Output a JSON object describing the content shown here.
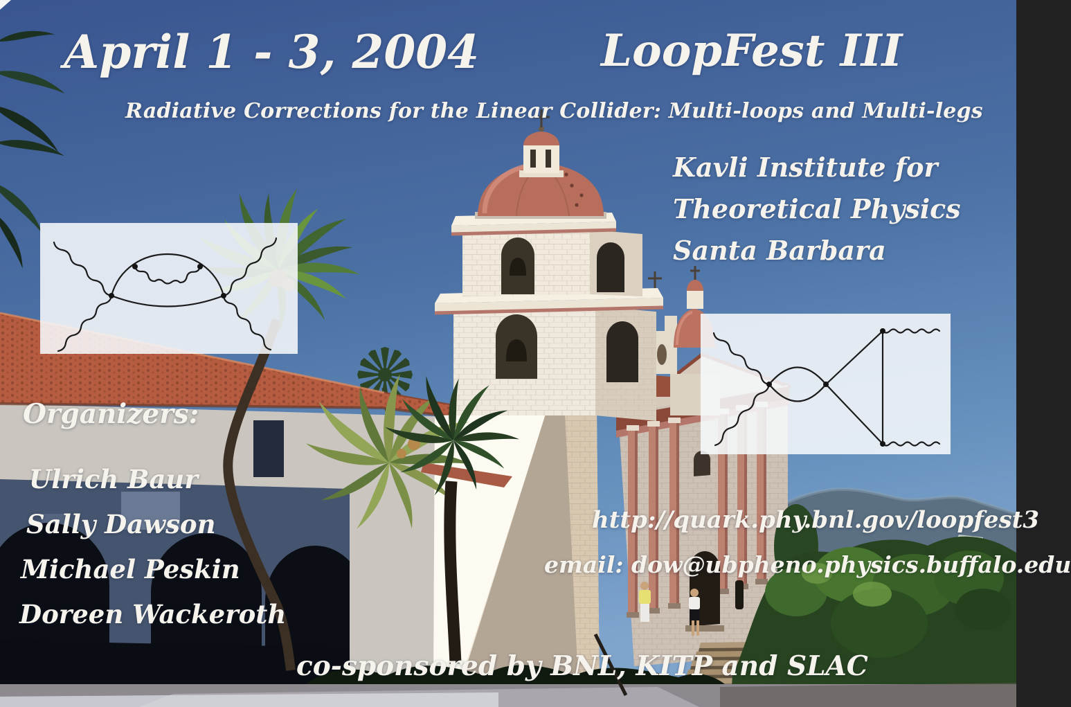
{
  "poster": {
    "dates": "April 1 - 3, 2004",
    "title": "LoopFest III",
    "subtitle": "Radiative Corrections for the Linear Collider: Multi-loops and Multi-legs",
    "venue_lines": [
      "Kavli Institute for",
      "Theoretical Physics",
      "Santa Barbara"
    ],
    "organizers_heading": "Organizers:",
    "organizers": [
      "Ulrich Baur",
      "Sally Dawson",
      "Michael Peskin",
      "Doreen Wackeroth"
    ],
    "website": "http://quark.phy.bnl.gov/loopfest3",
    "email": "email: dow@ubpheno.physics.buffalo.edu",
    "sponsors": "co-sponsored by BNL, KITP and SLAC"
  },
  "diagrams": {
    "left_name": "two-loop-photon-photon-feynman-diagram",
    "right_name": "one-loop-vertex-feynman-diagram"
  },
  "photo": {
    "background_name": "santa-barbara-mission-photo",
    "colors": {
      "sky_top": "#3a5590",
      "sky_horizon": "#80a5cd",
      "dome_terracotta": "#b76e5c",
      "roof_tile": "#b65c40",
      "text_white": "#f5f3ec"
    }
  }
}
